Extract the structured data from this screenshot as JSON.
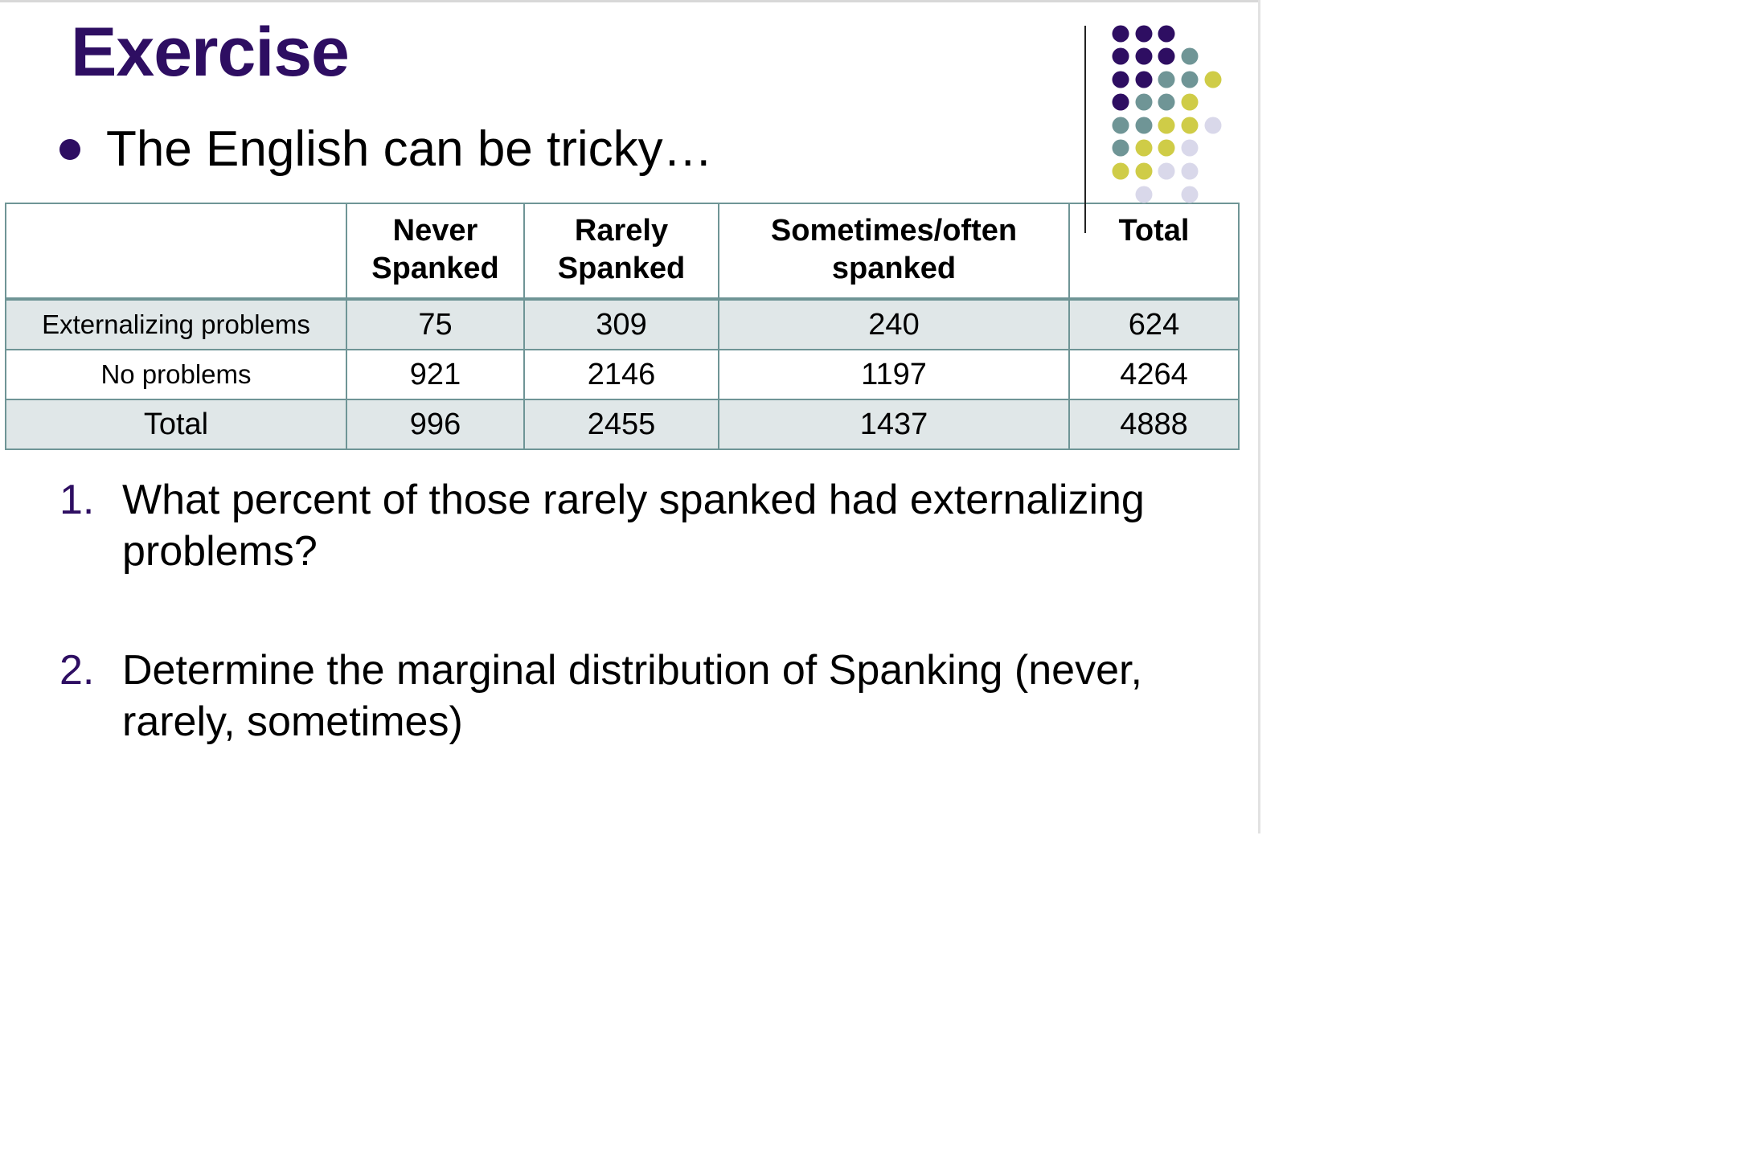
{
  "slide": {
    "title": "Exercise",
    "subtitle": "The English can be tricky…",
    "accent_color": "#2e0e62",
    "decoration_colors": [
      "#2e0e62",
      "#6f9596",
      "#cfcc47",
      "#d9d8ea"
    ]
  },
  "table": {
    "headers": [
      "",
      "Never Spanked",
      "Rarely Spanked",
      "Sometimes/often spanked",
      "Total"
    ],
    "rows": [
      {
        "label": "Externalizing problems",
        "cells": [
          "75",
          "309",
          "240",
          "624"
        ]
      },
      {
        "label": "No problems",
        "cells": [
          "921",
          "2146",
          "1197",
          "4264"
        ]
      },
      {
        "label": "Total",
        "cells": [
          "996",
          "2455",
          "1437",
          "4888"
        ]
      }
    ]
  },
  "questions": [
    {
      "number": "1.",
      "text": "What percent of those rarely spanked had externalizing problems?"
    },
    {
      "number": "2.",
      "text": "Determine the marginal distribution of Spanking (never, rarely, sometimes)"
    }
  ]
}
